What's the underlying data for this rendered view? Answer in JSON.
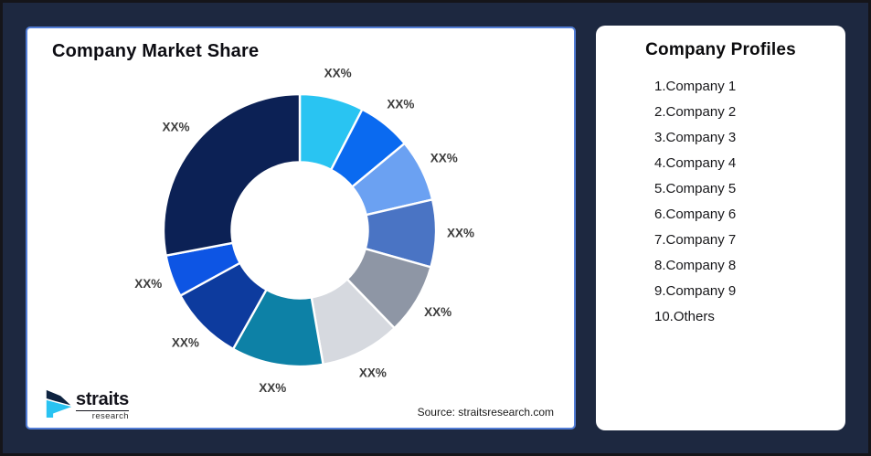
{
  "window": {
    "background": "#1d2840",
    "border_color": "#15151a"
  },
  "chart_panel": {
    "title": "Company Market Share",
    "source_note": "Source: straitsresearch.com",
    "accent_border": "#527dd6",
    "logo": {
      "brand": "straits",
      "sub_brand": "research",
      "icon_navy": "#0e2340",
      "icon_cyan": "#29c3f2"
    }
  },
  "profiles_panel": {
    "title": "Company Profiles",
    "items": [
      "1.Company 1",
      "2.Company 2",
      "3.Company 3",
      "4.Company 4",
      "5.Company 5",
      "6.Company 6",
      "7.Company 7",
      "8.Company 8",
      "9.Company 9",
      "10.Others"
    ]
  },
  "chart_data": {
    "type": "pie",
    "subtype": "donut",
    "title": "Company Market Share",
    "categories": [
      "Company 1",
      "Company 2",
      "Company 3",
      "Company 4",
      "Company 5",
      "Company 6",
      "Company 7",
      "Company 8",
      "Company 9",
      "Others"
    ],
    "values": [
      7.6,
      6.4,
      7.4,
      8.0,
      8.4,
      9.5,
      10.9,
      8.9,
      5.0,
      28.0
    ],
    "displayed_slice_labels": [
      "XX%",
      "XX%",
      "XX%",
      "XX%",
      "XX%",
      "XX%",
      "XX%",
      "XX%",
      "XX%",
      "XX%"
    ],
    "colors": [
      "#29c4f2",
      "#0a6af0",
      "#6ba1f2",
      "#4a74c4",
      "#8e96a5",
      "#d6d9df",
      "#0d81a6",
      "#0d3b9e",
      "#0d55e4",
      "#0c2155"
    ],
    "start_angle_deg": 0,
    "direction": "clockwise",
    "inner_radius_ratio": 0.5,
    "slice_label_color": "#3d3d3d",
    "slice_gap_color": "#ffffff",
    "legend": "none"
  }
}
